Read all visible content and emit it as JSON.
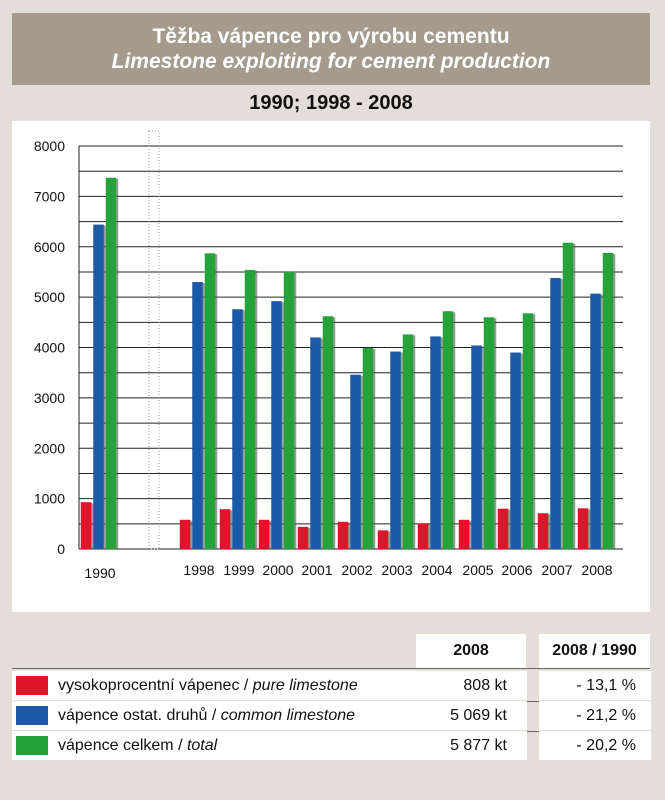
{
  "header": {
    "title_cz": "Těžba vápence pro výrobu cementu",
    "title_en": "Limestone exploiting for cement production",
    "years": "1990; 1998 - 2008"
  },
  "chart_data": {
    "type": "bar",
    "categories": [
      "1990",
      "1998",
      "1999",
      "2000",
      "2001",
      "2002",
      "2003",
      "2004",
      "2005",
      "2006",
      "2007",
      "2008"
    ],
    "series": [
      {
        "name": "vysokoprocentní vápenec / pure limestone",
        "color": "#e0142a",
        "values": [
          930,
          580,
          790,
          580,
          440,
          540,
          370,
          510,
          580,
          800,
          710,
          808
        ]
      },
      {
        "name": "vápence ostat. druhů / common limestone",
        "color": "#1c5aa8",
        "values": [
          6440,
          5300,
          4760,
          4920,
          4200,
          3460,
          3920,
          4220,
          4040,
          3900,
          5380,
          5069
        ]
      },
      {
        "name": "vápence celkem / total",
        "color": "#26a23a",
        "values": [
          7370,
          5870,
          5540,
          5500,
          4620,
          3990,
          4260,
          4720,
          4600,
          4680,
          6080,
          5877
        ]
      }
    ],
    "ylim": [
      0,
      8000
    ],
    "yticks": [
      "0",
      "1000",
      "2000",
      "3000",
      "4000",
      "5000",
      "6000",
      "7000",
      "8000"
    ],
    "grid": true
  },
  "table": {
    "col_2008": "2008",
    "col_ratio": "2008 / 1990",
    "rows": [
      {
        "label_cz": "vysokoprocentní vápenec / ",
        "label_en": "pure limestone",
        "value": "808 kt",
        "ratio": "- 13,1 %",
        "color": "#e0142a"
      },
      {
        "label_cz": "vápence ostat. druhů / ",
        "label_en": "common limestone",
        "value": "5 069 kt",
        "ratio": "- 21,2 %",
        "color": "#1c5aa8"
      },
      {
        "label_cz": "vápence celkem / ",
        "label_en": "total",
        "value": "5 877 kt",
        "ratio": "- 20,2 %",
        "color": "#26a23a"
      }
    ]
  }
}
